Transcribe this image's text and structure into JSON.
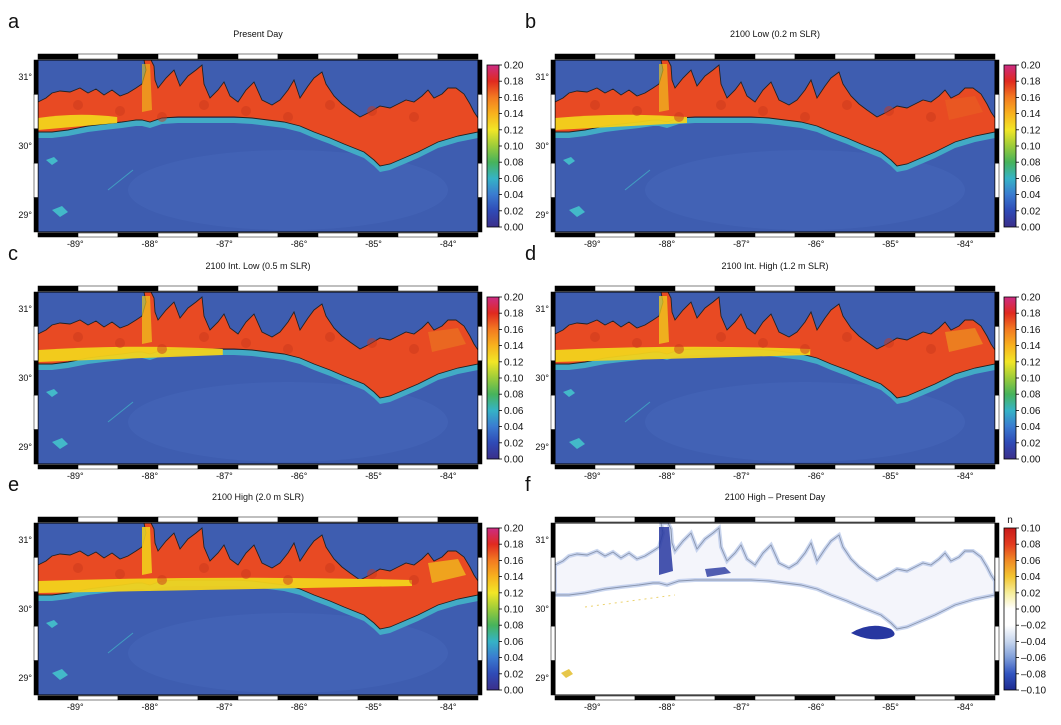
{
  "chart_data": [
    {
      "type": "heatmap",
      "panel_letter": "a",
      "title": "Present Day",
      "x_ticks": [
        "-89°",
        "-88°",
        "-87°",
        "-86°",
        "-85°",
        "-84°"
      ],
      "y_ticks": [
        "31°",
        "30°",
        "29°"
      ],
      "xlim": [
        -89.5,
        -83.6
      ],
      "ylim": [
        28.75,
        31.25
      ],
      "colorbar": {
        "ticks": [
          "0.20",
          "0.18",
          "0.16",
          "0.14",
          "0.12",
          "0.10",
          "0.08",
          "0.06",
          "0.04",
          "0.02",
          "0.00"
        ],
        "range": [
          0.0,
          0.2
        ],
        "colormap": "rainbow"
      }
    },
    {
      "type": "heatmap",
      "panel_letter": "b",
      "title": "2100 Low (0.2 m SLR)",
      "x_ticks": [
        "-89°",
        "-88°",
        "-87°",
        "-86°",
        "-85°",
        "-84°"
      ],
      "y_ticks": [
        "31°",
        "30°",
        "29°"
      ],
      "xlim": [
        -89.5,
        -83.6
      ],
      "ylim": [
        28.75,
        31.25
      ],
      "colorbar": {
        "ticks": [
          "0.20",
          "0.18",
          "0.16",
          "0.14",
          "0.12",
          "0.10",
          "0.08",
          "0.06",
          "0.04",
          "0.02",
          "0.00"
        ],
        "range": [
          0.0,
          0.2
        ],
        "colormap": "rainbow"
      }
    },
    {
      "type": "heatmap",
      "panel_letter": "c",
      "title": "2100 Int. Low (0.5 m SLR)",
      "x_ticks": [
        "-89°",
        "-88°",
        "-87°",
        "-86°",
        "-85°",
        "-84°"
      ],
      "y_ticks": [
        "31°",
        "30°",
        "29°"
      ],
      "xlim": [
        -89.5,
        -83.6
      ],
      "ylim": [
        28.75,
        31.25
      ],
      "colorbar": {
        "ticks": [
          "0.20",
          "0.18",
          "0.16",
          "0.14",
          "0.12",
          "0.10",
          "0.08",
          "0.06",
          "0.04",
          "0.02",
          "0.00"
        ],
        "range": [
          0.0,
          0.2
        ],
        "colormap": "rainbow"
      }
    },
    {
      "type": "heatmap",
      "panel_letter": "d",
      "title": "2100 Int. High (1.2 m SLR)",
      "x_ticks": [
        "-89°",
        "-88°",
        "-87°",
        "-86°",
        "-85°",
        "-84°"
      ],
      "y_ticks": [
        "31°",
        "30°",
        "29°"
      ],
      "xlim": [
        -89.5,
        -83.6
      ],
      "ylim": [
        28.75,
        31.25
      ],
      "colorbar": {
        "ticks": [
          "0.20",
          "0.18",
          "0.16",
          "0.14",
          "0.12",
          "0.10",
          "0.08",
          "0.06",
          "0.04",
          "0.02",
          "0.00"
        ],
        "range": [
          0.0,
          0.2
        ],
        "colormap": "rainbow"
      }
    },
    {
      "type": "heatmap",
      "panel_letter": "e",
      "title": "2100 High (2.0 m SLR)",
      "x_ticks": [
        "-89°",
        "-88°",
        "-87°",
        "-86°",
        "-85°",
        "-84°"
      ],
      "y_ticks": [
        "31°",
        "30°",
        "29°"
      ],
      "xlim": [
        -89.5,
        -83.6
      ],
      "ylim": [
        28.75,
        31.25
      ],
      "colorbar": {
        "ticks": [
          "0.20",
          "0.18",
          "0.16",
          "0.14",
          "0.12",
          "0.10",
          "0.08",
          "0.06",
          "0.04",
          "0.02",
          "0.00"
        ],
        "range": [
          0.0,
          0.2
        ],
        "colormap": "rainbow"
      }
    },
    {
      "type": "heatmap",
      "panel_letter": "f",
      "title": "2100 High – Present Day",
      "x_ticks": [
        "-89°",
        "-88°",
        "-87°",
        "-86°",
        "-85°",
        "-84°"
      ],
      "y_ticks": [
        "31°",
        "30°",
        "29°"
      ],
      "xlim": [
        -89.5,
        -83.6
      ],
      "ylim": [
        28.75,
        31.25
      ],
      "colorbar": {
        "label": "n",
        "ticks": [
          "0.10",
          "0.08",
          "0.06",
          "0.04",
          "0.02",
          "0.00",
          "–0.02",
          "–0.04",
          "–0.06",
          "–0.08",
          "–0.10"
        ],
        "range": [
          -0.1,
          0.1
        ],
        "colormap": "diverging"
      }
    }
  ],
  "colors": {
    "water": "#3e5db0",
    "water_light": "#4a6cc0",
    "land_primary": "#e84a23",
    "land_dark": "#c9381c",
    "nearshore_yellow": "#f2d21c",
    "nearshore_cyan": "#43b9c9",
    "diff_blue": "#2737a0",
    "diff_light": "#b4c4e8",
    "diff_yellow": "#e7c74a",
    "frame": "#000000"
  }
}
